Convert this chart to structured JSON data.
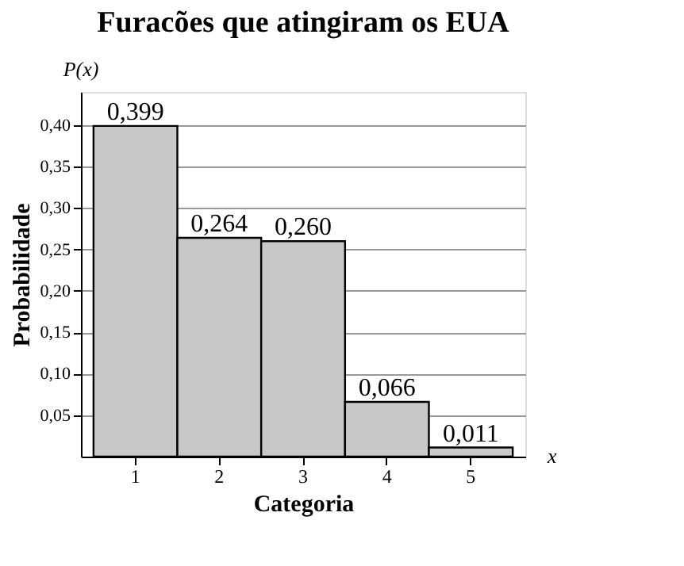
{
  "chart_data": {
    "type": "bar",
    "title": "Furacões que atingiram os EUA",
    "xlabel": "Categoria",
    "ylabel": "Probabilidade",
    "annotations": [
      "P(x)",
      "x"
    ],
    "categories": [
      "1",
      "2",
      "3",
      "4",
      "5"
    ],
    "values": [
      0.399,
      0.264,
      0.26,
      0.066,
      0.011
    ],
    "value_labels": [
      "0,399",
      "0,264",
      "0,260",
      "0,066",
      "0,011"
    ],
    "color": "#c8c8c8",
    "ylim": [
      0,
      0.44
    ],
    "yticks": [
      {
        "value": 0.05,
        "label": "0,05"
      },
      {
        "value": 0.1,
        "label": "0,10"
      },
      {
        "value": 0.15,
        "label": "0,15"
      },
      {
        "value": 0.2,
        "label": "0,20"
      },
      {
        "value": 0.25,
        "label": "0,25"
      },
      {
        "value": 0.3,
        "label": "0,30"
      },
      {
        "value": 0.35,
        "label": "0,35"
      },
      {
        "value": 0.4,
        "label": "0,40"
      }
    ],
    "grid": "y"
  }
}
